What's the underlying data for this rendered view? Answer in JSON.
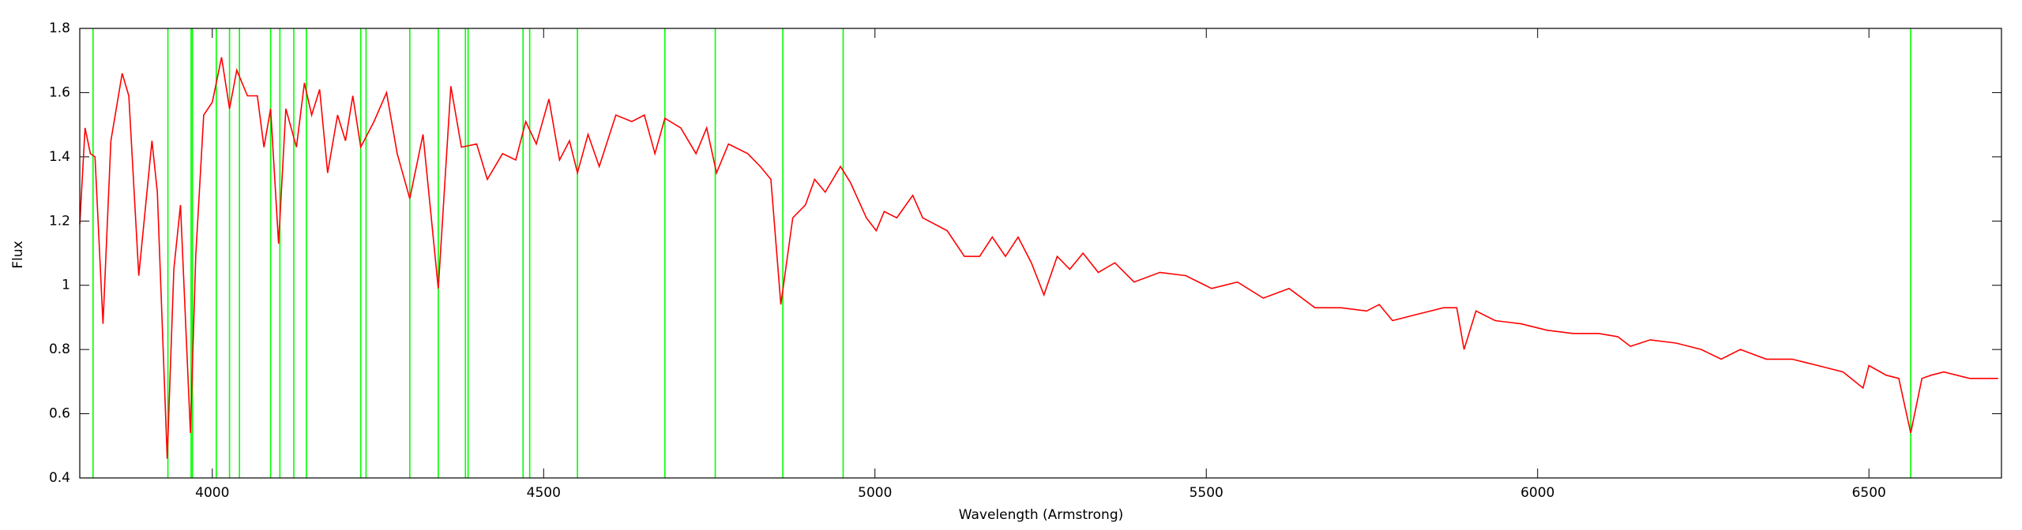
{
  "chart_data": {
    "type": "line",
    "xlabel": "Wavelength (Armstrong)",
    "ylabel": "Flux",
    "xlim": [
      3800,
      6700
    ],
    "ylim": [
      0.4,
      1.8
    ],
    "xticks": [
      4000,
      4500,
      5000,
      5500,
      6000,
      6500
    ],
    "yticks": [
      0.4,
      0.6,
      0.8,
      1,
      1.2,
      1.4,
      1.6,
      1.8
    ],
    "series": [
      {
        "color": "#ff0000",
        "x": [
          3800,
          3808,
          3816,
          3823,
          3835,
          3847,
          3864,
          3874,
          3889,
          3909,
          3917,
          3932,
          3942,
          3952,
          3967,
          3975,
          3987,
          4000,
          4014,
          4026,
          4037,
          4053,
          4068,
          4078,
          4088,
          4100,
          4111,
          4127,
          4139,
          4150,
          4162,
          4174,
          4189,
          4201,
          4212,
          4224,
          4244,
          4263,
          4279,
          4298,
          4318,
          4341,
          4360,
          4376,
          4399,
          4415,
          4438,
          4458,
          4473,
          4489,
          4508,
          4524,
          4539,
          4551,
          4567,
          4584,
          4609,
          4633,
          4652,
          4668,
          4683,
          4707,
          4730,
          4746,
          4761,
          4779,
          4808,
          4827,
          4843,
          4858,
          4876,
          4895,
          4909,
          4925,
          4948,
          4963,
          4987,
          5002,
          5014,
          5033,
          5057,
          5072,
          5109,
          5135,
          5158,
          5177,
          5197,
          5216,
          5236,
          5255,
          5275,
          5294,
          5314,
          5337,
          5362,
          5391,
          5430,
          5469,
          5508,
          5547,
          5586,
          5625,
          5664,
          5703,
          5742,
          5761,
          5781,
          5819,
          5858,
          5878,
          5889,
          5907,
          5936,
          5975,
          6014,
          6053,
          6092,
          6121,
          6140,
          6170,
          6209,
          6247,
          6277,
          6306,
          6345,
          6384,
          6423,
          6461,
          6491,
          6500,
          6526,
          6545,
          6563,
          6580,
          6594,
          6613,
          6652,
          6695
        ],
        "values": [
          1.19,
          1.49,
          1.41,
          1.4,
          0.88,
          1.45,
          1.66,
          1.59,
          1.03,
          1.45,
          1.29,
          0.46,
          1.05,
          1.25,
          0.54,
          1.09,
          1.53,
          1.57,
          1.71,
          1.55,
          1.67,
          1.59,
          1.59,
          1.43,
          1.55,
          1.13,
          1.55,
          1.43,
          1.63,
          1.53,
          1.61,
          1.35,
          1.53,
          1.45,
          1.59,
          1.43,
          1.51,
          1.6,
          1.41,
          1.27,
          1.47,
          0.99,
          1.62,
          1.43,
          1.44,
          1.33,
          1.41,
          1.39,
          1.51,
          1.44,
          1.58,
          1.39,
          1.45,
          1.35,
          1.47,
          1.37,
          1.53,
          1.51,
          1.53,
          1.41,
          1.52,
          1.49,
          1.41,
          1.49,
          1.35,
          1.44,
          1.41,
          1.37,
          1.33,
          0.94,
          1.21,
          1.25,
          1.33,
          1.29,
          1.37,
          1.32,
          1.21,
          1.17,
          1.23,
          1.21,
          1.28,
          1.21,
          1.17,
          1.09,
          1.09,
          1.15,
          1.09,
          1.15,
          1.07,
          0.97,
          1.09,
          1.05,
          1.1,
          1.04,
          1.07,
          1.01,
          1.04,
          1.03,
          0.99,
          1.01,
          0.96,
          0.99,
          0.93,
          0.93,
          0.92,
          0.94,
          0.89,
          0.91,
          0.93,
          0.93,
          0.8,
          0.92,
          0.89,
          0.88,
          0.86,
          0.85,
          0.85,
          0.84,
          0.81,
          0.83,
          0.82,
          0.8,
          0.77,
          0.8,
          0.77,
          0.77,
          0.75,
          0.73,
          0.68,
          0.75,
          0.72,
          0.71,
          0.54,
          0.71,
          0.72,
          0.73,
          0.71,
          0.71
        ]
      }
    ],
    "vlines": {
      "color": "#00ff00",
      "x": [
        3820,
        3933,
        3968,
        3970,
        4006,
        4026,
        4041,
        4088,
        4102,
        4123,
        4142,
        4224,
        4232,
        4298,
        4341,
        4382,
        4386,
        4469,
        4479,
        4551,
        4683,
        4759,
        4861,
        4952,
        6563
      ]
    }
  }
}
